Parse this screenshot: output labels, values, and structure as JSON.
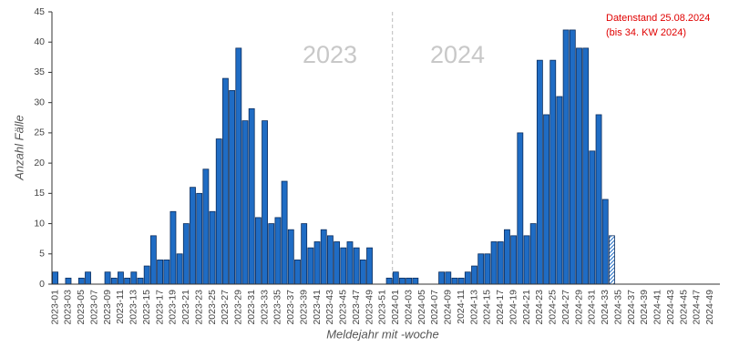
{
  "chart_data": {
    "type": "bar",
    "x_label": "Meldejahr mit -woche",
    "y_label": "Anzahl Fälle",
    "annotations": [
      "2023",
      "2024",
      "Datenstand 25.08.2024",
      "(bis 34. KW 2024)"
    ],
    "categories": [
      "2023-01",
      null,
      "2023-03",
      null,
      "2023-05",
      null,
      "2023-07",
      null,
      "2023-09",
      null,
      "2023-11",
      null,
      "2023-13",
      null,
      "2023-15",
      null,
      "2023-17",
      null,
      "2023-19",
      null,
      "2023-21",
      null,
      "2023-23",
      null,
      "2023-25",
      null,
      "2023-27",
      null,
      "2023-29",
      null,
      "2023-31",
      null,
      "2023-33",
      null,
      "2023-35",
      null,
      "2023-37",
      null,
      "2023-39",
      null,
      "2023-41",
      null,
      "2023-43",
      null,
      "2023-45",
      null,
      "2023-47",
      null,
      "2023-49",
      null,
      "2023-51",
      null,
      "2024-01",
      null,
      "2024-03",
      null,
      "2024-05",
      null,
      "2024-07",
      null,
      "2024-09",
      null,
      "2024-11",
      null,
      "2024-13",
      null,
      "2024-15",
      null,
      "2024-17",
      null,
      "2024-19",
      null,
      "2024-21",
      null,
      "2024-23",
      null,
      "2024-25",
      null,
      "2024-27",
      null,
      "2024-29",
      null,
      "2024-31",
      null,
      "2024-33",
      null,
      "2024-35",
      null,
      "2024-37",
      null,
      "2024-39",
      null,
      "2024-41",
      null,
      "2024-43",
      null,
      "2024-45",
      null,
      "2024-47",
      null,
      "2024-49",
      null
    ],
    "values": [
      2,
      0,
      1,
      0,
      1,
      2,
      0,
      0,
      2,
      1,
      2,
      1,
      2,
      1,
      3,
      8,
      4,
      4,
      12,
      5,
      10,
      16,
      15,
      19,
      12,
      24,
      34,
      32,
      39,
      27,
      29,
      11,
      27,
      10,
      11,
      17,
      9,
      4,
      10,
      6,
      7,
      9,
      8,
      7,
      6,
      7,
      6,
      4,
      6,
      0,
      0,
      1,
      2,
      1,
      1,
      1,
      0,
      0,
      0,
      2,
      2,
      1,
      1,
      2,
      3,
      5,
      5,
      7,
      7,
      9,
      8,
      25,
      8,
      10,
      37,
      28,
      37,
      31,
      42,
      42,
      39,
      39,
      22,
      28,
      14,
      8,
      0,
      0,
      0,
      0,
      0,
      0,
      0,
      0,
      0,
      0,
      0,
      0,
      0,
      0,
      0,
      0
    ],
    "color": "#1f6cc4",
    "hatch_last_nonzero": true,
    "ylim": [
      0,
      45
    ],
    "yticks": [
      0,
      5,
      10,
      15,
      20,
      25,
      30,
      35,
      40,
      45
    ]
  }
}
